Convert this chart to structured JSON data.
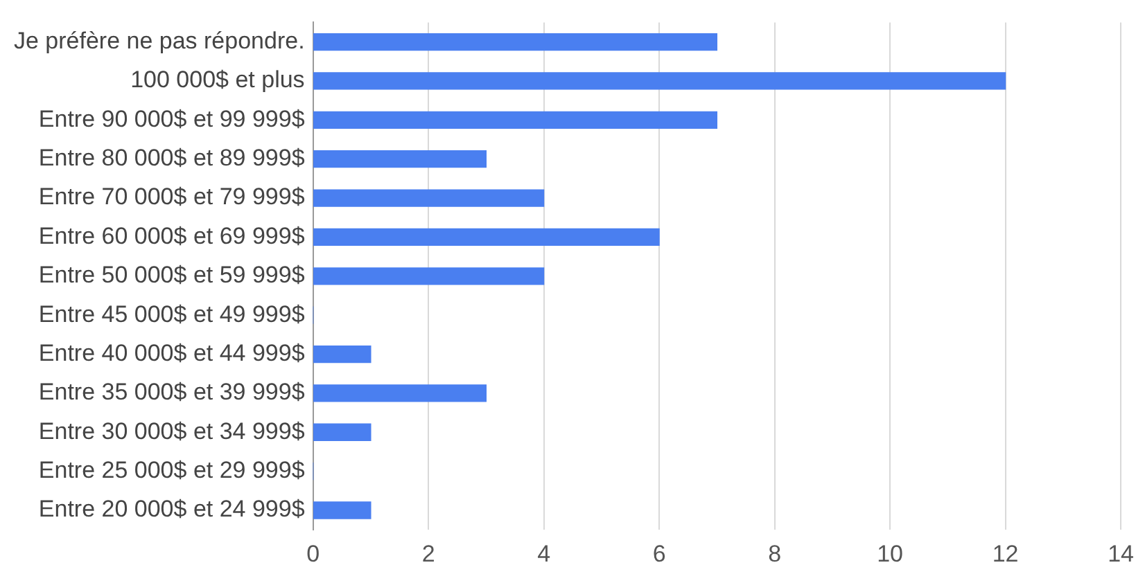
{
  "chart_data": {
    "type": "bar",
    "orientation": "horizontal",
    "categories": [
      "Je préfère ne pas répondre.",
      "100 000$ et plus",
      "Entre 90 000$ et 99 999$",
      "Entre 80 000$ et 89 999$",
      "Entre 70 000$ et 79 999$",
      "Entre 60 000$ et 69 999$",
      "Entre 50 000$ et 59 999$",
      "Entre 45 000$ et 49 999$",
      "Entre 40 000$ et 44 999$",
      "Entre 35 000$ et 39 999$",
      "Entre 30 000$ et 34 999$",
      "Entre 25 000$ et 29 999$",
      "Entre 20 000$ et 24 999$"
    ],
    "values": [
      7,
      12,
      7,
      3,
      4,
      6,
      4,
      0,
      1,
      3,
      1,
      0,
      1
    ],
    "color": "#4a7ff0",
    "xlim": [
      0,
      14
    ],
    "xticks": [
      0,
      2,
      4,
      6,
      8,
      10,
      12,
      14
    ],
    "grid": "x",
    "legend": false
  }
}
